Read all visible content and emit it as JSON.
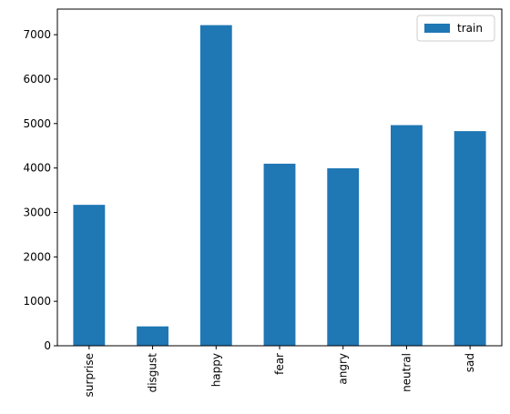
{
  "chart_data": {
    "type": "bar",
    "categories": [
      "surprise",
      "disgust",
      "happy",
      "fear",
      "angry",
      "neutral",
      "sad"
    ],
    "series": [
      {
        "name": "train",
        "values": [
          3171,
          436,
          7215,
          4097,
          3995,
          4965,
          4830
        ]
      }
    ],
    "ylim": [
      0,
      7576
    ],
    "yticks": [
      0,
      1000,
      2000,
      3000,
      4000,
      5000,
      6000,
      7000
    ],
    "xlabel": "",
    "ylabel": "",
    "title": "",
    "grid": false,
    "legend_position": "top-right",
    "colors": {
      "bar": "#1f77b4",
      "axis": "#000000",
      "legend_border": "#cccccc"
    }
  }
}
